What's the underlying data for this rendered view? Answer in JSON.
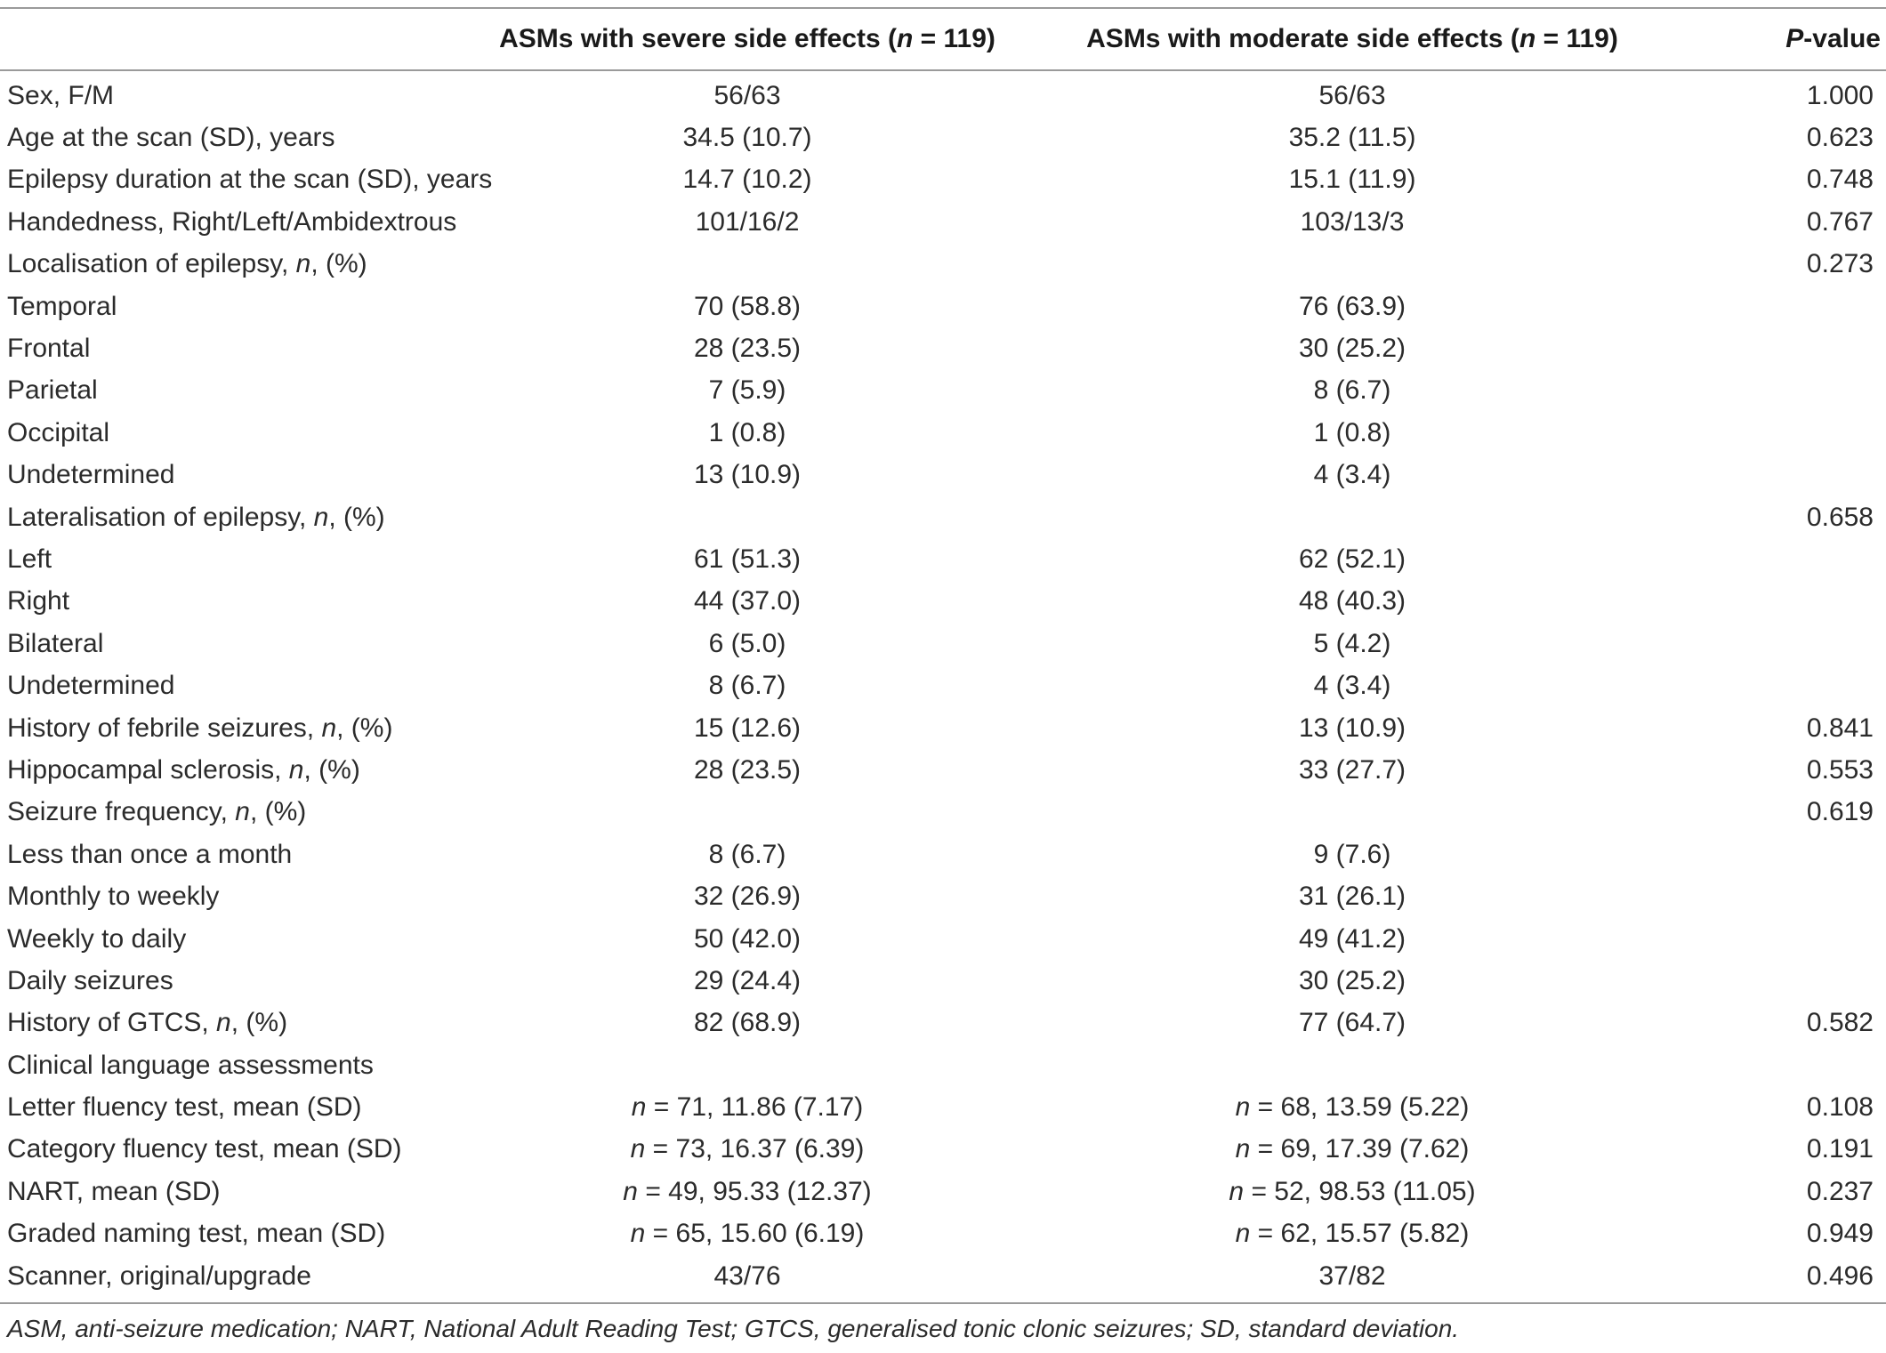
{
  "table": {
    "headers": {
      "col_label": "",
      "col_severe": "ASMs with severe side effects (n = 119)",
      "col_moderate": "ASMs with moderate side effects (n = 119)",
      "col_p": "P-value"
    },
    "rows": [
      {
        "label": "Sex, F/M",
        "severe": "56/63",
        "moderate": "56/63",
        "p": "1.000"
      },
      {
        "label": "Age at the scan (SD), years",
        "severe": "34.5 (10.7)",
        "moderate": "35.2 (11.5)",
        "p": "0.623"
      },
      {
        "label": "Epilepsy duration at the scan (SD), years",
        "severe": "14.7 (10.2)",
        "moderate": "15.1 (11.9)",
        "p": "0.748"
      },
      {
        "label": "Handedness, Right/Left/Ambidextrous",
        "severe": "101/16/2",
        "moderate": "103/13/3",
        "p": "0.767"
      },
      {
        "label": "Localisation of epilepsy, n, (%)",
        "severe": "",
        "moderate": "",
        "p": "0.273"
      },
      {
        "label": "Temporal",
        "severe": "70 (58.8)",
        "moderate": "76 (63.9)",
        "p": ""
      },
      {
        "label": "Frontal",
        "severe": "28 (23.5)",
        "moderate": "30 (25.2)",
        "p": ""
      },
      {
        "label": "Parietal",
        "severe": "7 (5.9)",
        "moderate": "8 (6.7)",
        "p": ""
      },
      {
        "label": "Occipital",
        "severe": "1 (0.8)",
        "moderate": "1 (0.8)",
        "p": ""
      },
      {
        "label": "Undetermined",
        "severe": "13 (10.9)",
        "moderate": "4 (3.4)",
        "p": ""
      },
      {
        "label": "Lateralisation of epilepsy, n, (%)",
        "severe": "",
        "moderate": "",
        "p": "0.658"
      },
      {
        "label": "Left",
        "severe": "61 (51.3)",
        "moderate": "62 (52.1)",
        "p": ""
      },
      {
        "label": "Right",
        "severe": "44 (37.0)",
        "moderate": "48 (40.3)",
        "p": ""
      },
      {
        "label": "Bilateral",
        "severe": "6 (5.0)",
        "moderate": "5 (4.2)",
        "p": ""
      },
      {
        "label": "Undetermined",
        "severe": "8 (6.7)",
        "moderate": "4 (3.4)",
        "p": ""
      },
      {
        "label": "History of febrile seizures, n, (%)",
        "severe": "15 (12.6)",
        "moderate": "13 (10.9)",
        "p": "0.841"
      },
      {
        "label": "Hippocampal sclerosis, n, (%)",
        "severe": "28 (23.5)",
        "moderate": "33 (27.7)",
        "p": "0.553"
      },
      {
        "label": "Seizure frequency, n, (%)",
        "severe": "",
        "moderate": "",
        "p": "0.619"
      },
      {
        "label": "Less than once a month",
        "severe": "8 (6.7)",
        "moderate": "9 (7.6)",
        "p": ""
      },
      {
        "label": "Monthly to weekly",
        "severe": "32 (26.9)",
        "moderate": "31 (26.1)",
        "p": ""
      },
      {
        "label": "Weekly to daily",
        "severe": "50 (42.0)",
        "moderate": "49 (41.2)",
        "p": ""
      },
      {
        "label": "Daily seizures",
        "severe": "29 (24.4)",
        "moderate": "30 (25.2)",
        "p": ""
      },
      {
        "label": "History of GTCS, n, (%)",
        "severe": "82 (68.9)",
        "moderate": "77 (64.7)",
        "p": "0.582"
      },
      {
        "label": "Clinical language assessments",
        "severe": "",
        "moderate": "",
        "p": ""
      },
      {
        "label": "Letter fluency test, mean (SD)",
        "severe": "n = 71, 11.86 (7.17)",
        "moderate": "n = 68, 13.59 (5.22)",
        "p": "0.108"
      },
      {
        "label": "Category fluency test, mean (SD)",
        "severe": "n = 73, 16.37 (6.39)",
        "moderate": "n = 69, 17.39 (7.62)",
        "p": "0.191"
      },
      {
        "label": "NART, mean (SD)",
        "severe": "n = 49, 95.33 (12.37)",
        "moderate": "n = 52, 98.53 (11.05)",
        "p": "0.237"
      },
      {
        "label": "Graded naming test, mean (SD)",
        "severe": "n = 65, 15.60 (6.19)",
        "moderate": "n = 62, 15.57 (5.82)",
        "p": "0.949"
      },
      {
        "label": "Scanner, original/upgrade",
        "severe": "43/76",
        "moderate": "37/82",
        "p": "0.496"
      }
    ],
    "footnote": "ASM, anti-seizure medication; NART, National Adult Reading Test; GTCS, generalised tonic clonic seizures; SD, standard deviation."
  }
}
